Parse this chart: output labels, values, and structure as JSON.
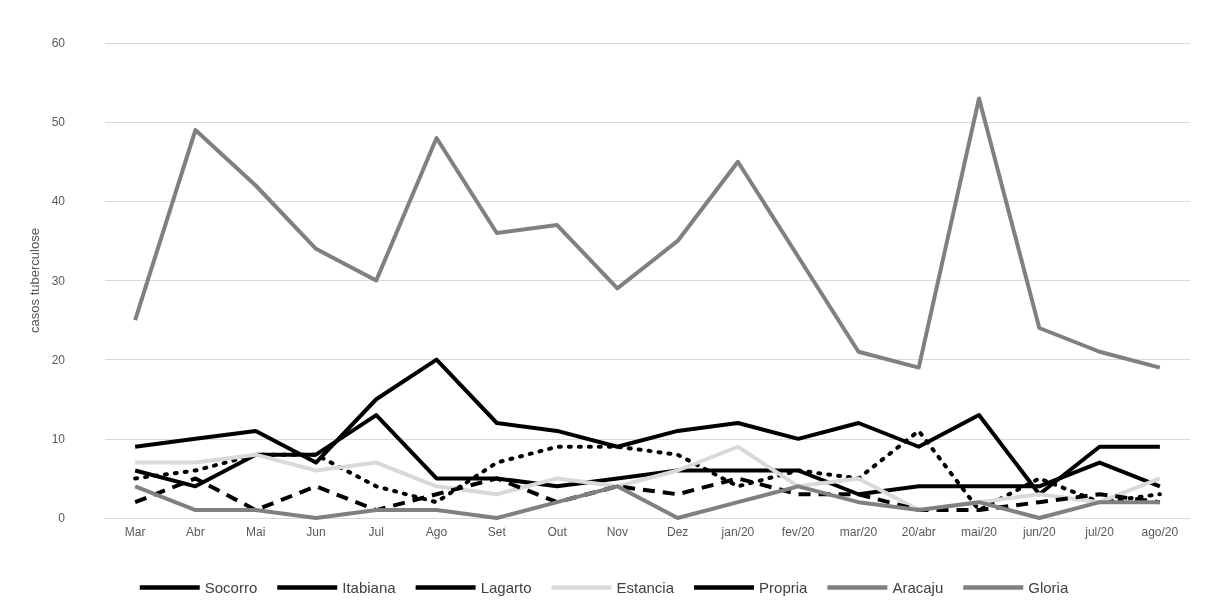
{
  "chart_data": {
    "type": "line",
    "ylabel": "casos tuberculose",
    "categories": [
      "Mar",
      "Abr",
      "Mai",
      "Jun",
      "Jul",
      "Ago",
      "Set",
      "Out",
      "Nov",
      "Dez",
      "jan/20",
      "fev/20",
      "mar/20",
      "20/abr",
      "mai/20",
      "jun/20",
      "jul/20",
      "ago/20"
    ],
    "series": [
      {
        "name": "Socorro",
        "color": "#000000",
        "line_style": "solid",
        "values": [
          9,
          10,
          11,
          7,
          15,
          20,
          12,
          11,
          9,
          11,
          12,
          10,
          12,
          9,
          13,
          3,
          9,
          9
        ]
      },
      {
        "name": "Itabiana",
        "color": "#000000",
        "line_style": "dotted",
        "values": [
          5,
          6,
          8,
          8,
          4,
          2,
          7,
          9,
          9,
          8,
          4,
          6,
          5,
          11,
          1,
          5,
          2,
          3
        ]
      },
      {
        "name": "Lagarto",
        "color": "#000000",
        "line_style": "solid",
        "values": [
          6,
          4,
          8,
          8,
          13,
          5,
          5,
          4,
          5,
          6,
          6,
          6,
          3,
          4,
          4,
          4,
          7,
          4
        ]
      },
      {
        "name": "Estancia",
        "color": "#d9d9d9",
        "line_style": "solid",
        "values": [
          7,
          7,
          8,
          6,
          7,
          4,
          3,
          5,
          4,
          6,
          9,
          4,
          5,
          1,
          2,
          3,
          2,
          5
        ]
      },
      {
        "name": "Propria",
        "color": "#000000",
        "line_style": "dashed",
        "values": [
          2,
          5,
          1,
          4,
          1,
          3,
          5,
          2,
          4,
          3,
          5,
          3,
          3,
          1,
          1,
          2,
          3,
          2
        ]
      },
      {
        "name": "Aracaju",
        "color": "#808080",
        "line_style": "solid",
        "values": [
          25,
          49,
          42,
          34,
          30,
          48,
          36,
          37,
          29,
          35,
          45,
          33,
          21,
          19,
          53,
          24,
          21,
          19
        ]
      },
      {
        "name": "Gloria",
        "color": "#808080",
        "line_style": "solid",
        "values": [
          4,
          1,
          1,
          0,
          1,
          1,
          0,
          2,
          4,
          0,
          2,
          4,
          2,
          1,
          2,
          0,
          2,
          2
        ]
      }
    ],
    "ylim": [
      0,
      60
    ],
    "yticks": [
      0,
      10,
      20,
      30,
      40,
      50,
      60
    ],
    "grid": "y",
    "legend": "bottom",
    "marker": "none"
  }
}
